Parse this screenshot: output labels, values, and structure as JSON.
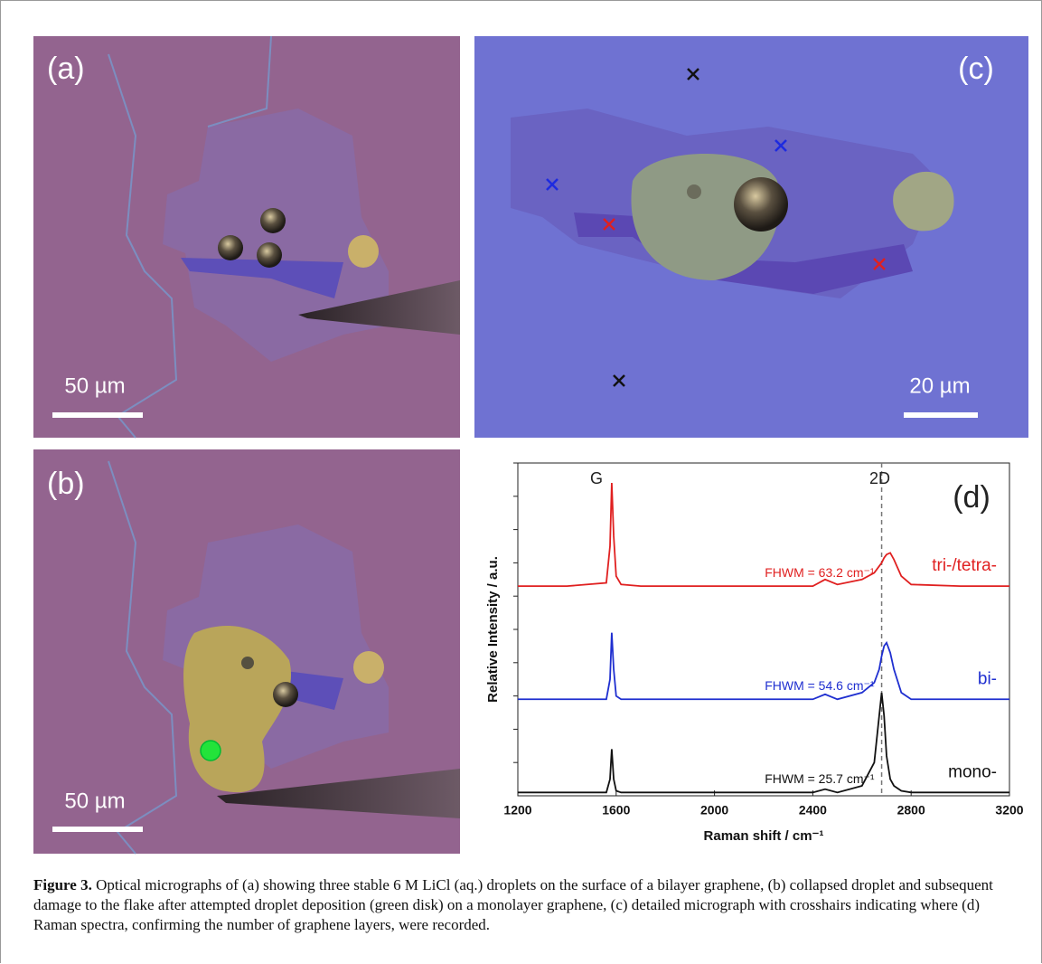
{
  "panels": [
    {
      "label": "(a)",
      "scale_bar": "50 µm"
    },
    {
      "label": "(c)",
      "scale_bar": "20 µm"
    },
    {
      "label": "(b)",
      "scale_bar": "50 µm"
    }
  ],
  "chart_data": {
    "type": "line",
    "panel_label": "(d)",
    "x_label": "Raman shift / cm⁻¹",
    "y_label": "Relative Intensity / a.u.",
    "xlim": [
      1200,
      3200
    ],
    "xticks": [
      1200,
      1600,
      2000,
      2400,
      2800,
      3200
    ],
    "ylim": [
      0,
      10
    ],
    "yticks": [
      1,
      2,
      3,
      4,
      5,
      6,
      7,
      8,
      9,
      10
    ],
    "peak_labels": [
      "G",
      "2D"
    ],
    "reference_line": 2680,
    "x": [
      1200,
      1400,
      1560,
      1575,
      1582,
      1590,
      1600,
      1620,
      1700,
      2000,
      2400,
      2450,
      2500,
      2600,
      2650,
      2670,
      2680,
      2690,
      2700,
      2715,
      2730,
      2760,
      2800,
      3000,
      3200
    ],
    "series": [
      {
        "name": "tri-/tetra-",
        "color": "#e02020",
        "fwhm_label": "FHWM = 63.2 cm⁻¹",
        "values": [
          6.3,
          6.3,
          6.4,
          7.5,
          9.4,
          7.8,
          6.6,
          6.35,
          6.3,
          6.3,
          6.3,
          6.5,
          6.35,
          6.5,
          6.7,
          6.9,
          7.0,
          7.15,
          7.25,
          7.3,
          7.1,
          6.6,
          6.35,
          6.3,
          6.3
        ]
      },
      {
        "name": "bi-",
        "color": "#1f2fd0",
        "fwhm_label": "FHWM = 54.6 cm⁻¹",
        "values": [
          2.9,
          2.9,
          2.9,
          3.5,
          4.9,
          3.8,
          3.0,
          2.9,
          2.9,
          2.9,
          2.9,
          3.05,
          2.9,
          3.1,
          3.4,
          3.8,
          4.2,
          4.5,
          4.6,
          4.3,
          3.8,
          3.1,
          2.9,
          2.9,
          2.9
        ]
      },
      {
        "name": "mono-",
        "color": "#111111",
        "fwhm_label": "FHWM = 25.7 cm⁻¹",
        "values": [
          0.1,
          0.1,
          0.1,
          0.5,
          1.4,
          0.5,
          0.15,
          0.1,
          0.1,
          0.1,
          0.1,
          0.2,
          0.1,
          0.3,
          1.0,
          2.4,
          3.1,
          2.4,
          1.2,
          0.5,
          0.3,
          0.15,
          0.1,
          0.1,
          0.1
        ]
      }
    ]
  },
  "caption": {
    "label": "Figure 3.",
    "text": "Optical micrographs of (a) showing three stable 6 M LiCl (aq.) droplets on the surface of a bilayer graphene, (b) collapsed droplet and subsequent damage to the flake after attempted droplet deposition (green disk) on a monolayer graphene, (c) detailed micrograph with crosshairs indicating where (d) Raman spectra, confirming the number of graphene layers, were recorded."
  }
}
